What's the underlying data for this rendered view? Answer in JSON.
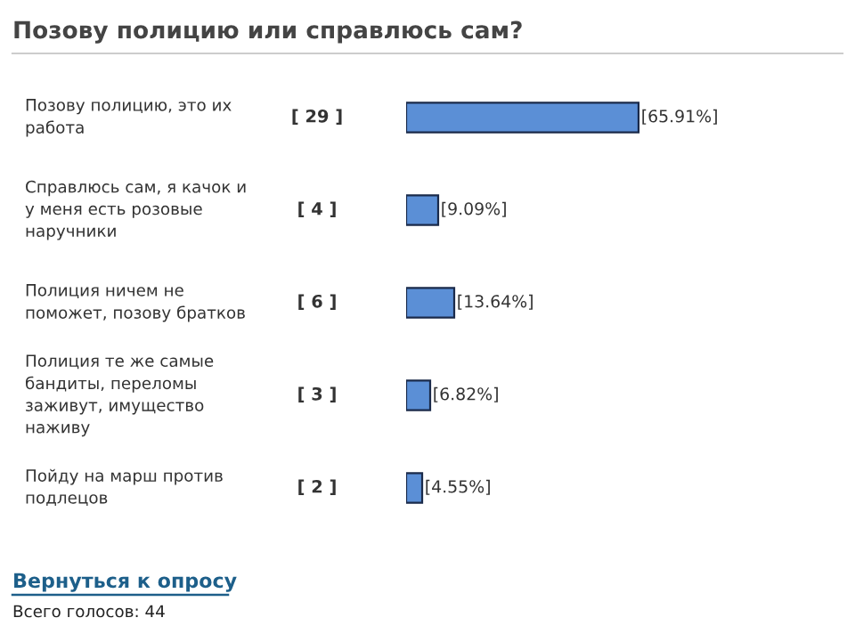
{
  "chart_data": {
    "type": "bar",
    "orientation": "horizontal",
    "title": "Позову полицию или справлюсь сам?",
    "categories": [
      "Позову полицию, это их\nработа",
      "Справлюсь сам, я качок и\nу меня есть розовые\nнаручники",
      "Полиция ничем не\nпоможет, позову братков",
      "Полиция те же самые\nбандиты, переломы\nзаживут, имущество\nнаживу",
      "Пойду на марш против\nподлецов"
    ],
    "values": [
      65.91,
      9.09,
      13.64,
      6.82,
      4.55
    ],
    "value_labels": [
      "[65.91%]",
      "[9.09%]",
      "[13.64%]",
      "[6.82%]",
      "[4.55%]"
    ],
    "color": "#5b8fd6",
    "annotations": [
      "[ 29 ]",
      "[ 4 ]",
      "[ 6 ]",
      "[ 3 ]",
      "[ 2 ]",
      "Вернуться к опросу",
      "Всего голосов: 44"
    ]
  }
}
